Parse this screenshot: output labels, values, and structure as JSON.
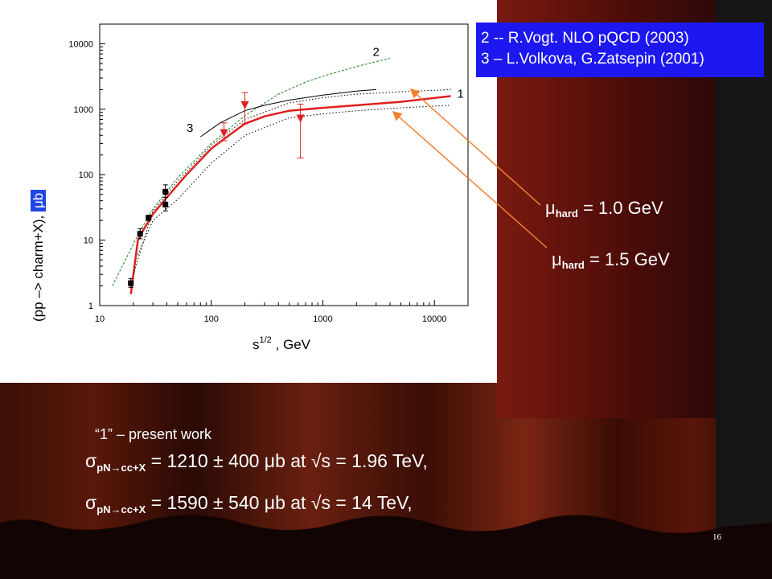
{
  "slide": {
    "legend_lines": [
      "2 -- R.Vogt. NLO pQCD (2003)",
      "3 – L.Volkova, G.Zatsepin (2001)"
    ],
    "mu_labels": [
      {
        "prefix": "μ",
        "sub": "hard",
        "rest": " = 1.0 GeV"
      },
      {
        "prefix": "μ",
        "sub": "hard",
        "rest": " = 1.5 GeV"
      }
    ],
    "note": "“1” – present work",
    "results": [
      {
        "sigma": "σ",
        "sub": "pN→cc+X",
        "rest": " = 1210 ± 400 μb  at  √s = 1.96 TeV,"
      },
      {
        "sigma": "σ",
        "sub": "pN→cc+X",
        "rest": " = 1590 ± 540 μb  at  √s = 14 TeV,"
      }
    ],
    "page_number": "16",
    "colors": {
      "panel": "#ffffff",
      "legend_bg": "#1e18f0",
      "curve1": "#e02020",
      "curve2": "#208020",
      "arrows": "#f08030",
      "backdrop": "#4a1208"
    }
  },
  "chart_data": {
    "type": "scatter",
    "title": "",
    "xlabel_base": "s",
    "xlabel_sup": "1/2",
    "xlabel_rest": " , GeV",
    "ylabel_main": "(pp –> charm+X), ",
    "ylabel_unit": "μb",
    "x_scale": "log",
    "y_scale": "log",
    "xlim": [
      10,
      20000
    ],
    "ylim": [
      1,
      20000
    ],
    "x_ticks": [
      {
        "v": 10,
        "label": "10"
      },
      {
        "v": 100,
        "label": "100"
      },
      {
        "v": 1000,
        "label": "1000"
      },
      {
        "v": 10000,
        "label": "10000"
      }
    ],
    "y_ticks": [
      {
        "v": 1,
        "label": "1"
      },
      {
        "v": 10,
        "label": "10"
      },
      {
        "v": 100,
        "label": "100"
      },
      {
        "v": 1000,
        "label": "1000"
      },
      {
        "v": 10000,
        "label": "10000"
      }
    ],
    "series": [
      {
        "name": "1",
        "style": "solid-red",
        "x": [
          19,
          22,
          25,
          30,
          40,
          60,
          100,
          150,
          200,
          300,
          500,
          700,
          1000,
          2000,
          5000,
          14000
        ],
        "y": [
          1.5,
          10,
          15,
          25,
          45,
          100,
          250,
          420,
          600,
          780,
          950,
          1000,
          1050,
          1150,
          1300,
          1590
        ]
      },
      {
        "name": "",
        "style": "dotted-upper",
        "x": [
          20,
          30,
          50,
          100,
          200,
          500,
          1000,
          2000,
          5000,
          14000
        ],
        "y": [
          3,
          28,
          80,
          280,
          700,
          1250,
          1500,
          1700,
          1850,
          2000
        ]
      },
      {
        "name": "",
        "style": "dotted-lower",
        "x": [
          22,
          30,
          50,
          100,
          200,
          500,
          1000,
          2000,
          5000,
          14000
        ],
        "y": [
          6,
          20,
          42,
          150,
          400,
          740,
          850,
          950,
          1050,
          1150
        ]
      },
      {
        "name": "2",
        "style": "dashed-green",
        "x": [
          13,
          17,
          22,
          30,
          50,
          100,
          200,
          400,
          700,
          1000,
          2000,
          4000
        ],
        "y": [
          2,
          5,
          12,
          30,
          90,
          300,
          800,
          1700,
          2600,
          3200,
          4500,
          6000
        ]
      },
      {
        "name": "3",
        "style": "solid-black",
        "x": [
          80,
          120,
          200,
          300,
          500,
          1000,
          2000,
          3000
        ],
        "y": [
          380,
          620,
          950,
          1150,
          1380,
          1650,
          1900,
          2000
        ]
      }
    ],
    "points_square": [
      {
        "x": 19,
        "y": 2.2,
        "lo": 1.9,
        "hi": 2.6
      },
      {
        "x": 23,
        "y": 12.5,
        "lo": 10.5,
        "hi": 15
      },
      {
        "x": 27.4,
        "y": 22,
        "lo": 20,
        "hi": 24
      },
      {
        "x": 38.8,
        "y": 55,
        "lo": 45,
        "hi": 70
      },
      {
        "x": 38.8,
        "y": 35,
        "lo": 28,
        "hi": 45
      }
    ],
    "points_triangle": [
      {
        "x": 130,
        "y": 430,
        "lo": 330,
        "hi": 620
      },
      {
        "x": 200,
        "y": 1150,
        "lo": 600,
        "hi": 1800
      },
      {
        "x": 630,
        "y": 720,
        "lo": 180,
        "hi": 1200
      }
    ],
    "curve_labels": [
      {
        "text": "2",
        "x": 2800,
        "y": 6500
      },
      {
        "text": "1",
        "x": 16000,
        "y": 1500
      },
      {
        "text": "3",
        "x": 60,
        "y": 450
      }
    ]
  }
}
